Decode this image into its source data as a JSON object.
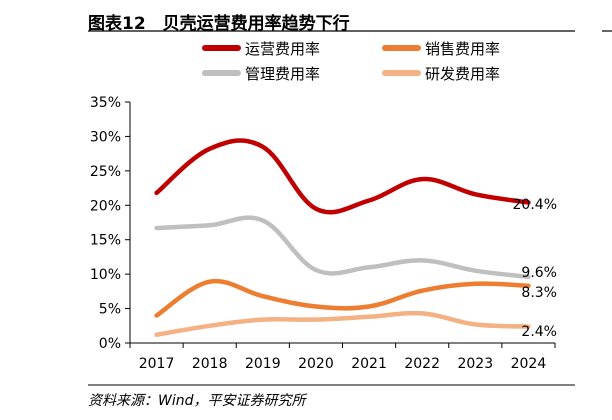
{
  "figure": {
    "title": "图表12　贝壳运营费用率趋势下行",
    "source": "资料来源：Wind，平安证券研究所"
  },
  "chart_data": {
    "type": "line",
    "title": "图表12　贝壳运营费用率趋势下行",
    "xlabel": "",
    "ylabel": "",
    "x": [
      "2017",
      "2018",
      "2019",
      "2020",
      "2021",
      "2022",
      "2023",
      "2024"
    ],
    "ylim": [
      0,
      35
    ],
    "yticks": [
      "0%",
      "5%",
      "10%",
      "15%",
      "20%",
      "25%",
      "30%",
      "35%"
    ],
    "grid": false,
    "legend_position": "top",
    "series": [
      {
        "name": "运营费用率",
        "color": "#C00000",
        "values": [
          21.8,
          28.2,
          28.5,
          19.5,
          20.7,
          23.8,
          21.6,
          20.4
        ],
        "end_label": "20.4%"
      },
      {
        "name": "销售费用率",
        "color": "#ED7D31",
        "values": [
          4.0,
          8.9,
          6.8,
          5.3,
          5.3,
          7.6,
          8.6,
          8.3
        ],
        "end_label": "8.3%"
      },
      {
        "name": "管理费用率",
        "color": "#BFBFBF",
        "values": [
          16.7,
          17.1,
          17.8,
          10.6,
          11.0,
          12.0,
          10.5,
          9.6
        ],
        "end_label": "9.6%"
      },
      {
        "name": "研发费用率",
        "color": "#F4B183",
        "values": [
          1.2,
          2.5,
          3.4,
          3.4,
          3.8,
          4.3,
          2.7,
          2.4
        ],
        "end_label": "2.4%"
      }
    ]
  }
}
